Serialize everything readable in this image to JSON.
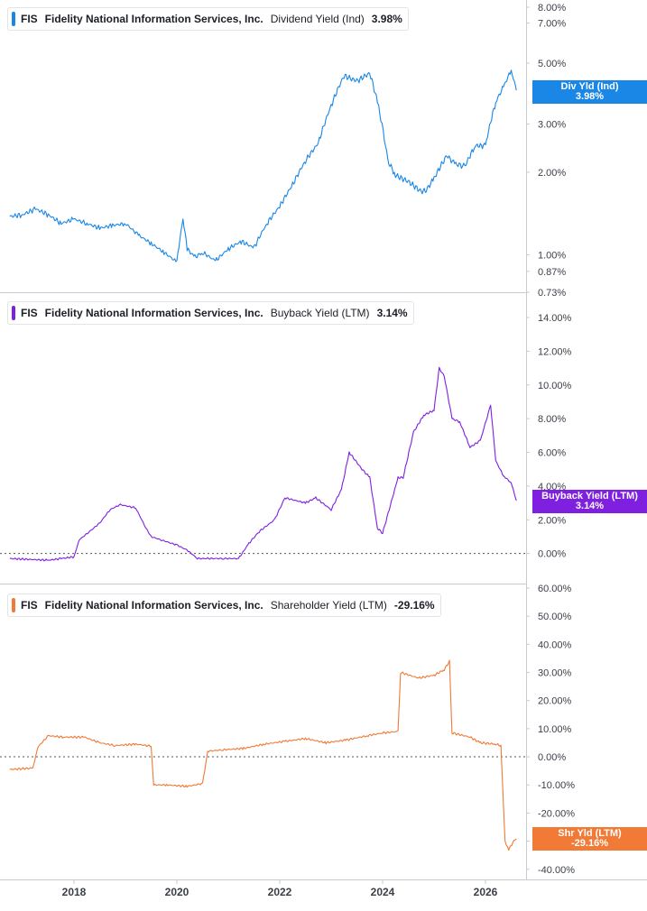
{
  "chart_data": [
    {
      "type": "line",
      "ticker": "FIS",
      "company": "Fidelity National Information Services, Inc.",
      "metric": "Dividend Yield (Ind)",
      "current_value": "3.98%",
      "badge": {
        "label": "Div Yld (Ind)",
        "value": "3.98%"
      },
      "color": "#1a86e6",
      "scale": "log",
      "ylim": [
        0.73,
        8.0
      ],
      "yticks": [
        {
          "value": 8.0,
          "label": "8.00%"
        },
        {
          "value": 7.0,
          "label": "7.00%"
        },
        {
          "value": 5.0,
          "label": "5.00%"
        },
        {
          "value": 3.0,
          "label": "3.00%"
        },
        {
          "value": 2.0,
          "label": "2.00%"
        },
        {
          "value": 1.0,
          "label": "1.00%"
        },
        {
          "value": 0.87,
          "label": "0.87%"
        },
        {
          "value": 0.73,
          "label": "0.73%"
        }
      ],
      "series": [
        {
          "x": [
            2016.75,
            2017.0,
            2017.25,
            2017.5,
            2017.75,
            2018.0,
            2018.25,
            2018.5,
            2018.75,
            2019.0,
            2019.25,
            2019.5,
            2019.75,
            2020.0,
            2020.12,
            2020.2,
            2020.35,
            2020.5,
            2020.75,
            2021.0,
            2021.25,
            2021.5,
            2021.75,
            2022.0,
            2022.25,
            2022.5,
            2022.75,
            2023.0,
            2023.25,
            2023.5,
            2023.75,
            2023.9,
            2024.1,
            2024.25,
            2024.5,
            2024.75,
            2024.85,
            2025.0,
            2025.25,
            2025.4,
            2025.6,
            2025.8,
            2026.0,
            2026.2,
            2026.35,
            2026.5,
            2026.6
          ],
          "y": [
            1.38,
            1.4,
            1.47,
            1.4,
            1.3,
            1.35,
            1.3,
            1.25,
            1.28,
            1.3,
            1.18,
            1.1,
            1.02,
            0.94,
            1.35,
            1.05,
            0.98,
            1.02,
            0.95,
            1.05,
            1.12,
            1.06,
            1.3,
            1.5,
            1.8,
            2.2,
            2.55,
            3.5,
            4.5,
            4.3,
            4.6,
            3.6,
            2.2,
            1.95,
            1.85,
            1.7,
            1.72,
            1.9,
            2.3,
            2.15,
            2.1,
            2.5,
            2.5,
            3.6,
            4.1,
            4.7,
            3.98
          ]
        }
      ]
    },
    {
      "type": "line",
      "ticker": "FIS",
      "company": "Fidelity National Information Services, Inc.",
      "metric": "Buyback Yield (LTM)",
      "current_value": "3.14%",
      "badge": {
        "label": "Buyback Yield (LTM)",
        "value": "3.14%"
      },
      "color": "#7f1fe0",
      "scale": "linear",
      "ylim": [
        -2.0,
        14.0
      ],
      "yticks": [
        {
          "value": 14,
          "label": "14.00%"
        },
        {
          "value": 12,
          "label": "12.00%"
        },
        {
          "value": 10,
          "label": "10.00%"
        },
        {
          "value": 8,
          "label": "8.00%"
        },
        {
          "value": 6,
          "label": "6.00%"
        },
        {
          "value": 4,
          "label": "4.00%"
        },
        {
          "value": 2,
          "label": "2.00%"
        },
        {
          "value": 0,
          "label": "0.00%"
        }
      ],
      "series": [
        {
          "x": [
            2016.75,
            2017.5,
            2017.75,
            2018.0,
            2018.1,
            2018.3,
            2018.5,
            2018.7,
            2018.9,
            2019.2,
            2019.4,
            2019.5,
            2019.7,
            2020.0,
            2020.2,
            2020.4,
            2020.6,
            2020.9,
            2021.2,
            2021.4,
            2021.6,
            2021.9,
            2022.1,
            2022.5,
            2022.7,
            2023.0,
            2023.2,
            2023.35,
            2023.6,
            2023.75,
            2023.9,
            2024.0,
            2024.3,
            2024.4,
            2024.6,
            2024.8,
            2025.0,
            2025.1,
            2025.2,
            2025.35,
            2025.5,
            2025.7,
            2025.9,
            2026.1,
            2026.2,
            2026.35,
            2026.5,
            2026.6
          ],
          "y": [
            -0.3,
            -0.4,
            -0.3,
            -0.2,
            0.8,
            1.3,
            1.8,
            2.6,
            2.9,
            2.7,
            1.5,
            1.0,
            0.8,
            0.5,
            0.2,
            -0.3,
            -0.3,
            -0.3,
            -0.3,
            0.6,
            1.3,
            2.0,
            3.3,
            3.0,
            3.3,
            2.6,
            3.8,
            6.0,
            5.0,
            4.5,
            1.5,
            1.2,
            4.5,
            4.5,
            7.2,
            8.2,
            8.5,
            11.0,
            10.5,
            8.0,
            7.8,
            6.3,
            6.7,
            8.8,
            5.5,
            4.6,
            4.2,
            3.14
          ]
        }
      ]
    },
    {
      "type": "line",
      "ticker": "FIS",
      "company": "Fidelity National Information Services, Inc.",
      "metric": "Shareholder Yield (LTM)",
      "current_value": "-29.16%",
      "badge": {
        "label": "Shr Yld (LTM)",
        "value": "-29.16%"
      },
      "color": "#f07a36",
      "scale": "linear",
      "ylim": [
        -42.0,
        60.0
      ],
      "yticks": [
        {
          "value": 60,
          "label": "60.00%"
        },
        {
          "value": 50,
          "label": "50.00%"
        },
        {
          "value": 40,
          "label": "40.00%"
        },
        {
          "value": 30,
          "label": "30.00%"
        },
        {
          "value": 20,
          "label": "20.00%"
        },
        {
          "value": 10,
          "label": "10.00%"
        },
        {
          "value": 0,
          "label": "0.00%"
        },
        {
          "value": -10,
          "label": "-10.00%"
        },
        {
          "value": -20,
          "label": "-20.00%"
        },
        {
          "value": -30,
          "label": "-30.00%"
        },
        {
          "value": -40,
          "label": "-40.00%"
        }
      ],
      "series": [
        {
          "x": [
            2016.75,
            2017.2,
            2017.3,
            2017.5,
            2017.8,
            2018.2,
            2018.5,
            2018.8,
            2019.2,
            2019.5,
            2019.55,
            2019.8,
            2020.2,
            2020.5,
            2020.6,
            2020.9,
            2021.3,
            2021.7,
            2022.1,
            2022.5,
            2022.9,
            2023.3,
            2023.7,
            2024.0,
            2024.3,
            2024.35,
            2024.7,
            2025.0,
            2025.2,
            2025.3,
            2025.35,
            2025.7,
            2025.9,
            2026.2,
            2026.3,
            2026.38,
            2026.45,
            2026.55,
            2026.6
          ],
          "y": [
            -4.5,
            -4.0,
            3.5,
            7.5,
            7.0,
            7.0,
            5.0,
            4.0,
            4.5,
            3.8,
            -10.0,
            -10.0,
            -10.5,
            -9.5,
            2.0,
            2.5,
            3.0,
            4.5,
            5.5,
            6.5,
            5.0,
            6.0,
            7.5,
            8.5,
            9.0,
            30.0,
            28.0,
            29.0,
            31.0,
            34.0,
            8.5,
            7.0,
            5.0,
            4.5,
            4.0,
            -30.0,
            -33.0,
            -30.0,
            -29.16
          ]
        }
      ]
    }
  ],
  "x_axis": {
    "ticks": [
      {
        "value": 2018,
        "label": "2018"
      },
      {
        "value": 2020,
        "label": "2020"
      },
      {
        "value": 2022,
        "label": "2022"
      },
      {
        "value": 2024,
        "label": "2024"
      },
      {
        "value": 2026,
        "label": "2026"
      }
    ]
  }
}
